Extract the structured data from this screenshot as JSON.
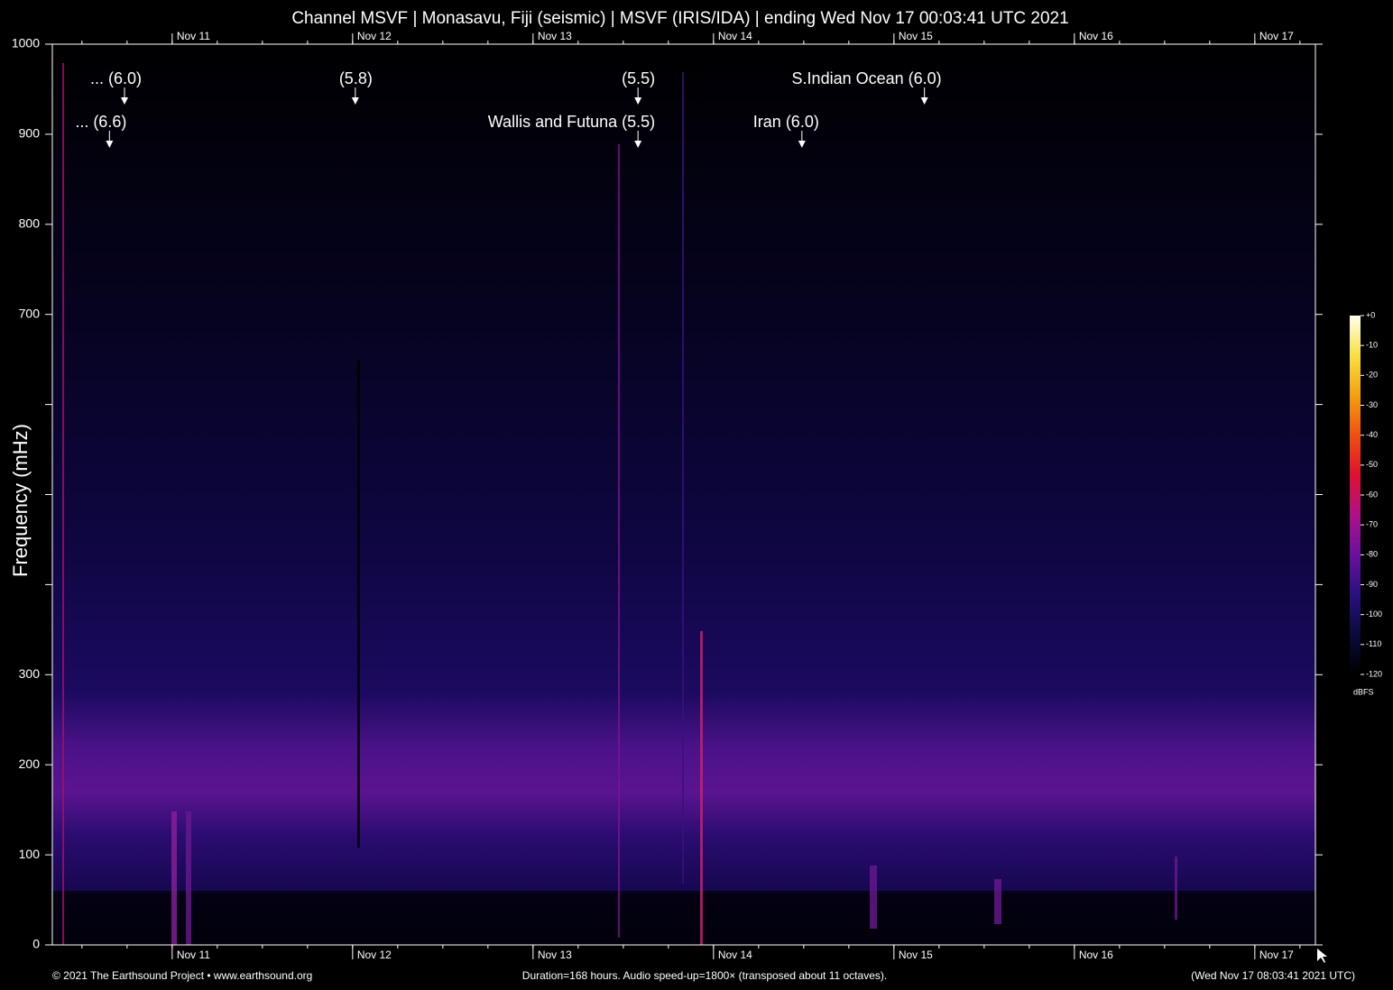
{
  "chart_data": {
    "type": "spectrogram",
    "title": "Channel MSVF | Monasavu, Fiji (seismic) | MSVF (IRIS/IDA) | ending Wed Nov 17 00:03:41 UTC 2021",
    "y_label": "Frequency (mHz)",
    "xlim": [
      0,
      168
    ],
    "xticks": [
      {
        "value": 15.94,
        "label": "Nov 11"
      },
      {
        "value": 39.94,
        "label": "Nov 12"
      },
      {
        "value": 63.94,
        "label": "Nov 13"
      },
      {
        "value": 87.94,
        "label": "Nov 14"
      },
      {
        "value": 111.94,
        "label": "Nov 15"
      },
      {
        "value": 135.94,
        "label": "Nov 16"
      },
      {
        "value": 159.94,
        "label": "Nov 17"
      }
    ],
    "ylim": [
      0,
      1000
    ],
    "yticks": [
      0,
      100,
      200,
      300,
      700,
      800,
      900,
      1000
    ],
    "yticks_unlabeled": [
      400,
      500,
      600
    ],
    "events": [
      {
        "label": "... (6.0)",
        "x": 9.6,
        "row": 1
      },
      {
        "label": "(5.8)",
        "x": 40.3,
        "row": 1
      },
      {
        "label": "(5.5)",
        "x": 77.9,
        "row": 1
      },
      {
        "label": "S.Indian Ocean (6.0)",
        "x": 116.0,
        "row": 1
      },
      {
        "label": "... (6.6)",
        "x": 7.6,
        "row": 2
      },
      {
        "label": "Wallis and Futuna (5.5)",
        "x": 77.9,
        "row": 2
      },
      {
        "label": "Iran (6.0)",
        "x": 99.7,
        "row": 2
      }
    ],
    "colorbar": {
      "label": "dBFS",
      "lim": [
        -120,
        0
      ],
      "ticks": [
        {
          "value": 0,
          "label": "+0"
        },
        -10,
        -20,
        -30,
        -40,
        -50,
        -60,
        -70,
        -80,
        -90,
        -100,
        -110,
        -120
      ],
      "colors": [
        "#000000",
        "#0a0a3a",
        "#2a1080",
        "#6a10a0",
        "#b0108a",
        "#e01030",
        "#f05010",
        "#f5a010",
        "#f8e040",
        "#fffff0"
      ]
    },
    "footer": {
      "left": "© 2021 The Earthsound Project • www.earthsound.org",
      "center": "Duration=168 hours. Audio speed-up=1800× (transposed about 11 octaves).",
      "right": "(Wed Nov 17 08:03:41 2021 UTC)"
    }
  }
}
